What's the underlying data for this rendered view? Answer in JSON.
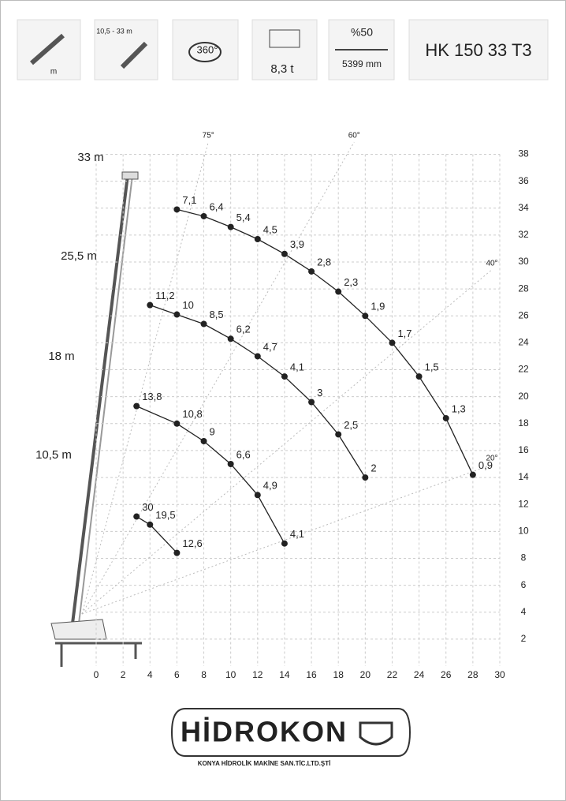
{
  "header": {
    "items": [
      "m",
      "10,5 - 33 m",
      "360°",
      "8,3 t",
      "%50",
      "5399 mm"
    ],
    "model": "HK 150 33 T3"
  },
  "footer": {
    "brand": "HİDROKON",
    "company": "KONYA HİDROLİK MAKİNE SAN.TİC.LTD.ŞTİ"
  },
  "chart_data": {
    "type": "scatter",
    "xlim": [
      0,
      30
    ],
    "ylim": [
      0,
      38
    ],
    "xticks": [
      0,
      2,
      4,
      6,
      8,
      10,
      12,
      14,
      16,
      18,
      20,
      22,
      24,
      26,
      28,
      30
    ],
    "yticks": [
      2,
      4,
      6,
      8,
      10,
      12,
      14,
      16,
      18,
      20,
      22,
      24,
      26,
      28,
      30,
      32,
      34,
      36,
      38
    ],
    "grid": true,
    "angles": [
      {
        "value": 75,
        "label": "75°"
      },
      {
        "value": 60,
        "label": "60°"
      },
      {
        "value": 40,
        "label": "40°"
      },
      {
        "value": 20,
        "label": "20°"
      }
    ],
    "series": [
      {
        "name": "33 m",
        "color": "#222",
        "x": [
          6,
          8,
          10,
          12,
          14,
          16,
          18,
          20,
          22,
          24,
          26,
          28
        ],
        "values": [
          33.9,
          33.4,
          32.6,
          31.7,
          30.6,
          29.3,
          27.8,
          26,
          24,
          21.5,
          18.4,
          14.2
        ],
        "loads": [
          "7,1",
          "6,4",
          "5,4",
          "4,5",
          "3,9",
          "2,8",
          "2,3",
          "1,9",
          "1,7",
          "1,5",
          "1,3",
          "0,9"
        ]
      },
      {
        "name": "25,5 m",
        "color": "#222",
        "x": [
          4,
          6,
          8,
          10,
          12,
          14,
          16,
          18,
          20
        ],
        "values": [
          26.8,
          26.1,
          25.4,
          24.3,
          23,
          21.5,
          19.6,
          17.2,
          14
        ],
        "loads": [
          "11,2",
          "10",
          "8,5",
          "6,2",
          "4,7",
          "4,1",
          "3",
          "2,5",
          "2"
        ]
      },
      {
        "name": "18 m",
        "color": "#222",
        "x": [
          3,
          6,
          8,
          10,
          12,
          14
        ],
        "values": [
          19.3,
          18,
          16.7,
          15,
          12.7,
          9.1
        ],
        "loads": [
          "13,8",
          "10,8",
          "9",
          "6,6",
          "4,9",
          "4,1"
        ]
      },
      {
        "name": "10,5 m",
        "color": "#222",
        "x": [
          3,
          4,
          6
        ],
        "values": [
          11.1,
          10.5,
          8.4
        ],
        "loads": [
          "30",
          "19,5",
          "12,6"
        ]
      }
    ]
  }
}
